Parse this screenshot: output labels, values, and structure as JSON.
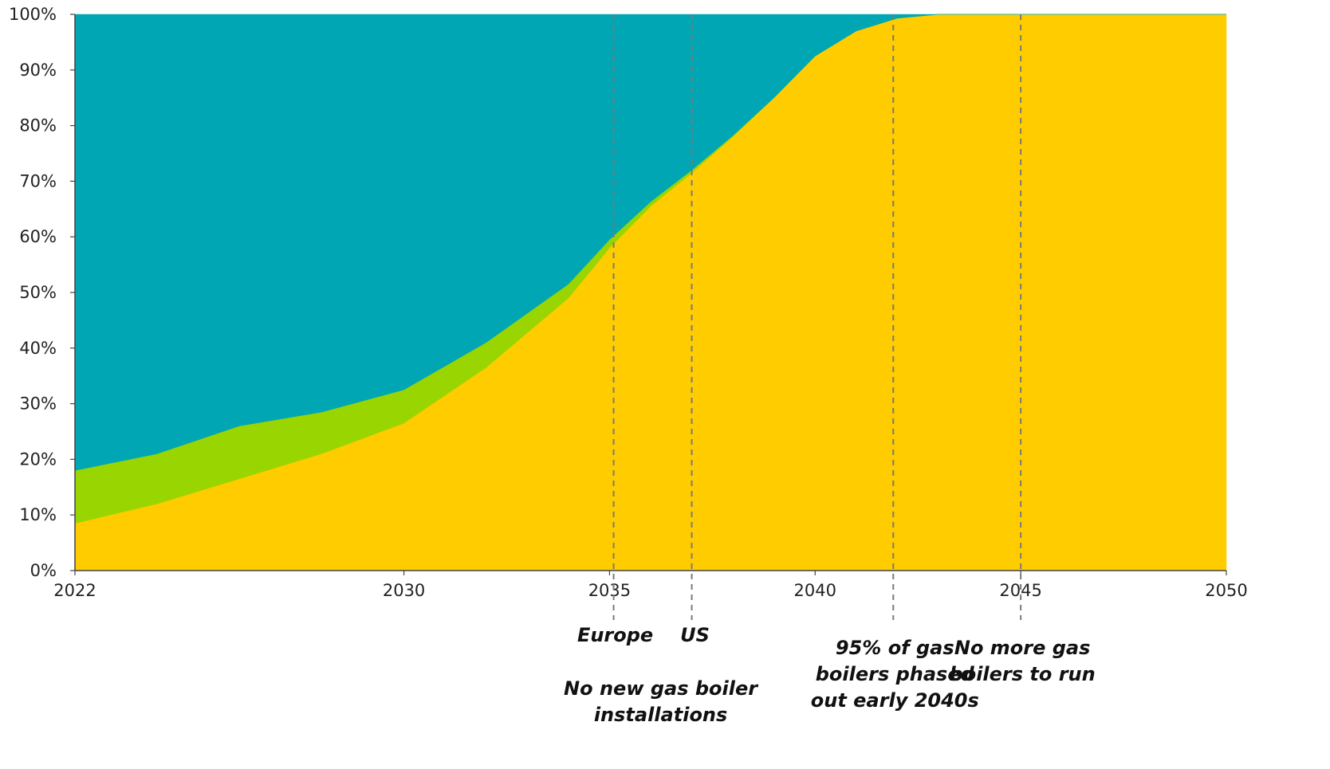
{
  "chart_data": {
    "type": "area",
    "stacked": true,
    "x": [
      2022,
      2024,
      2026,
      2028,
      2030,
      2032,
      2034,
      2035,
      2036,
      2037,
      2038,
      2039,
      2040,
      2041,
      2042,
      2043,
      2044,
      2045,
      2050
    ],
    "series": [
      {
        "color": "#FFCC00",
        "values": [
          8.5,
          12,
          16.5,
          21,
          26.5,
          36.5,
          49,
          58,
          65.5,
          71.5,
          78,
          85,
          92.5,
          97,
          99.3,
          100,
          100,
          100,
          100
        ]
      },
      {
        "color": "#99D500",
        "values": [
          9.5,
          9,
          9.5,
          7.5,
          6,
          4.5,
          2.5,
          1.5,
          0.8,
          0.5,
          0.2,
          0,
          0,
          0,
          0,
          0,
          0,
          0,
          0
        ]
      },
      {
        "color": "#00A6B4",
        "values": [
          82,
          79,
          74,
          71.5,
          67.5,
          59,
          48.5,
          40.5,
          33.7,
          28,
          21.8,
          15,
          7.5,
          3,
          0.7,
          0,
          0,
          0,
          0
        ]
      }
    ],
    "xlim": [
      2022,
      2050
    ],
    "ylim": [
      0,
      100
    ],
    "x_ticks": [
      "2022",
      "2030",
      "2035",
      "2040",
      "2045",
      "2050"
    ],
    "y_ticks": [
      "0%",
      "10%",
      "20%",
      "30%",
      "40%",
      "50%",
      "60%",
      "70%",
      "80%",
      "90%",
      "100%"
    ],
    "vlines": [
      {
        "x": 2035.1,
        "labels": [
          "Europe"
        ]
      },
      {
        "x": 2037,
        "labels": [
          "US"
        ]
      },
      {
        "x": 2041.9,
        "labels": [
          "95% of gas",
          "boilers phased",
          "out early 2040s"
        ]
      },
      {
        "x": 2045,
        "labels": [
          "No more gas",
          "boilers to run"
        ]
      }
    ],
    "shared_annotation": [
      "No new gas boiler",
      "installations"
    ],
    "grid": false,
    "legend": "none"
  }
}
